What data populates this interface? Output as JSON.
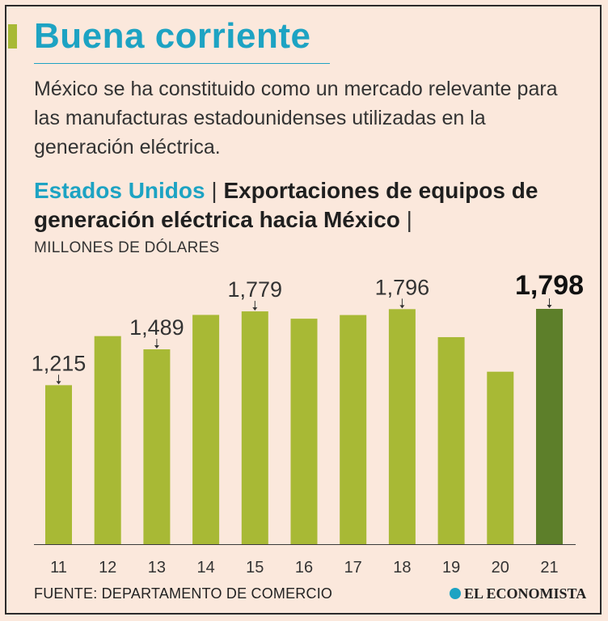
{
  "header": {
    "title": "Buena corriente",
    "subtitle": "México se ha constituido como un mercado relevante para las manufacturas estadounidenses utilizadas en la generación eléctrica."
  },
  "heading": {
    "country": "Estados Unidos",
    "separator": "|",
    "text": "Exportaciones de equipos de generación eléctrica hacia México",
    "trailing": "|"
  },
  "units": "MILLONES DE DÓLARES",
  "footer": {
    "source": "FUENTE: DEPARTAMENTO DE COMERCIO",
    "brand": "EL ECONOMISTA"
  },
  "colors": {
    "bar": "#a8b935",
    "highlight": "#5d7f2a",
    "accent": "#1da3c3",
    "background": "#fbe8dc"
  },
  "chart_data": {
    "type": "bar",
    "title": "Exportaciones de equipos de generación eléctrica hacia México",
    "ylabel": "MILLONES DE DÓLARES",
    "categories": [
      "11",
      "12",
      "13",
      "14",
      "15",
      "16",
      "17",
      "18",
      "19",
      "20",
      "21"
    ],
    "values": [
      1215,
      1590,
      1489,
      1752,
      1779,
      1723,
      1751,
      1796,
      1582,
      1318,
      1798
    ],
    "value_labels": [
      "1,215",
      "",
      "1,489",
      "",
      "1,779",
      "",
      "",
      "1,796",
      "",
      "",
      "1,798"
    ],
    "highlight_index": 10,
    "ylim": [
      0,
      1800
    ],
    "grid": false
  }
}
